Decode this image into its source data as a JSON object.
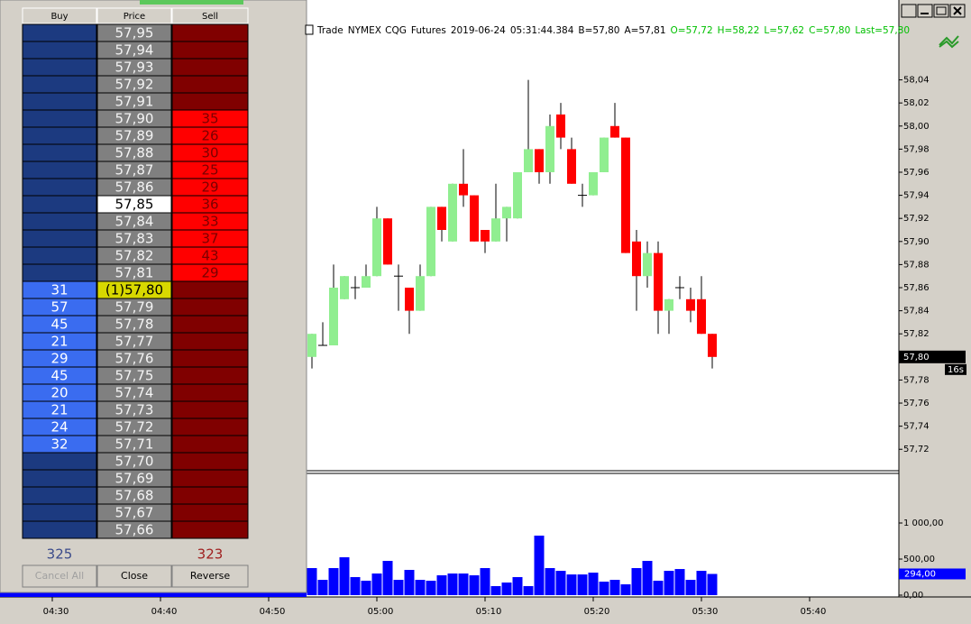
{
  "chart_data": [
    {
      "type": "candlestick",
      "title_parts": [
        {
          "text": "Trade",
          "color": "#000000"
        },
        {
          "text": "NYMEX",
          "color": "#000000"
        },
        {
          "text": "CQG",
          "color": "#000000"
        },
        {
          "text": "Futures",
          "color": "#000000"
        },
        {
          "text": "2019-06-24",
          "color": "#000000"
        },
        {
          "text": "05:31:44.384",
          "color": "#000000"
        },
        {
          "text": "B=57,80",
          "color": "#000000"
        },
        {
          "text": "A=57,81",
          "color": "#000000"
        },
        {
          "text": "O=57,72",
          "color": "#00c000"
        },
        {
          "text": "H=58,22",
          "color": "#00c000"
        },
        {
          "text": "L=57,62",
          "color": "#00c000"
        },
        {
          "text": "C=57,80",
          "color": "#00c000"
        },
        {
          "text": "Last=57,80",
          "color": "#00c000"
        }
      ],
      "x": [
        "04:54",
        "04:55",
        "04:56",
        "04:57",
        "04:58",
        "04:59",
        "05:00",
        "05:01",
        "05:02",
        "05:03",
        "05:04",
        "05:05",
        "05:06",
        "05:07",
        "05:08",
        "05:09",
        "05:10",
        "05:11",
        "05:12",
        "05:13",
        "05:14",
        "05:15",
        "05:16",
        "05:17",
        "05:18",
        "05:19",
        "05:20",
        "05:21",
        "05:22",
        "05:23",
        "05:24",
        "05:25",
        "05:26",
        "05:27",
        "05:28",
        "05:29",
        "05:30",
        "05:31"
      ],
      "open": [
        57.8,
        57.81,
        57.81,
        57.85,
        57.86,
        57.86,
        57.87,
        57.92,
        57.87,
        57.86,
        57.84,
        57.87,
        57.93,
        57.9,
        57.95,
        57.94,
        57.91,
        57.9,
        57.92,
        57.92,
        57.96,
        57.98,
        57.96,
        58.01,
        57.98,
        57.94,
        57.94,
        57.96,
        58.0,
        57.99,
        57.9,
        57.87,
        57.89,
        57.84,
        57.86,
        57.85,
        57.85,
        57.82
      ],
      "high": [
        57.82,
        57.83,
        57.88,
        57.87,
        57.87,
        57.88,
        57.93,
        57.92,
        57.88,
        57.86,
        57.88,
        57.93,
        57.93,
        57.95,
        57.98,
        57.94,
        57.91,
        57.95,
        57.93,
        57.96,
        58.04,
        57.98,
        58.01,
        58.02,
        57.99,
        57.95,
        57.96,
        57.99,
        58.02,
        57.99,
        57.91,
        57.9,
        57.9,
        57.85,
        57.87,
        57.86,
        57.87,
        57.82
      ],
      "low": [
        57.79,
        57.81,
        57.81,
        57.85,
        57.85,
        57.86,
        57.87,
        57.88,
        57.84,
        57.82,
        57.84,
        57.87,
        57.9,
        57.9,
        57.93,
        57.9,
        57.89,
        57.9,
        57.9,
        57.92,
        57.96,
        57.95,
        57.95,
        57.98,
        57.95,
        57.93,
        57.94,
        57.96,
        57.99,
        57.89,
        57.84,
        57.86,
        57.82,
        57.82,
        57.85,
        57.83,
        57.82,
        57.79
      ],
      "close": [
        57.82,
        57.81,
        57.86,
        57.87,
        57.86,
        57.87,
        57.92,
        57.88,
        57.87,
        57.84,
        57.87,
        57.93,
        57.91,
        57.95,
        57.94,
        57.9,
        57.9,
        57.92,
        57.93,
        57.96,
        57.98,
        57.96,
        58.0,
        57.99,
        57.95,
        57.94,
        57.96,
        57.99,
        57.99,
        57.89,
        57.87,
        57.89,
        57.84,
        57.85,
        57.86,
        57.84,
        57.82,
        57.8
      ],
      "up_color": "#90ee90",
      "down_color": "#ff0000",
      "ylim": [
        57.703,
        58.092
      ],
      "yticks": [
        {
          "value": 57.72,
          "label": "57,72"
        },
        {
          "value": 57.74,
          "label": "57,74"
        },
        {
          "value": 57.76,
          "label": "57,76"
        },
        {
          "value": 57.78,
          "label": "57,78"
        },
        {
          "value": 57.8,
          "label": "57,80"
        },
        {
          "value": 57.82,
          "label": "57,82"
        },
        {
          "value": 57.84,
          "label": "57,84"
        },
        {
          "value": 57.86,
          "label": "57,86"
        },
        {
          "value": 57.88,
          "label": "57,88"
        },
        {
          "value": 57.9,
          "label": "57,90"
        },
        {
          "value": 57.92,
          "label": "57,92"
        },
        {
          "value": 57.94,
          "label": "57,94"
        },
        {
          "value": 57.96,
          "label": "57,96"
        },
        {
          "value": 57.98,
          "label": "57,98"
        },
        {
          "value": 58.0,
          "label": "58,00"
        },
        {
          "value": 58.02,
          "label": "58,02"
        },
        {
          "value": 58.04,
          "label": "58,04"
        }
      ],
      "last_marker": {
        "value": 57.8,
        "label": "57,80"
      },
      "timer": "16s"
    },
    {
      "type": "bar",
      "x": [
        "04:54",
        "04:55",
        "04:56",
        "04:57",
        "04:58",
        "04:59",
        "05:00",
        "05:01",
        "05:02",
        "05:03",
        "05:04",
        "05:05",
        "05:06",
        "05:07",
        "05:08",
        "05:09",
        "05:10",
        "05:11",
        "05:12",
        "05:13",
        "05:14",
        "05:15",
        "05:16",
        "05:17",
        "05:18",
        "05:19",
        "05:20",
        "05:21",
        "05:22",
        "05:23",
        "05:24",
        "05:25",
        "05:26",
        "05:27",
        "05:28",
        "05:29",
        "05:30",
        "05:31"
      ],
      "values": [
        375,
        212,
        375,
        525,
        250,
        200,
        300,
        475,
        212,
        350,
        212,
        200,
        275,
        300,
        300,
        275,
        375,
        125,
        175,
        250,
        125,
        825,
        375,
        337,
        287,
        287,
        312,
        187,
        212,
        150,
        375,
        475,
        200,
        337,
        362,
        212,
        337,
        294
      ],
      "color": "#0000ff",
      "ylim": [
        0,
        1700
      ],
      "yticks": [
        {
          "value": 0,
          "label": "0,00"
        },
        {
          "value": 500,
          "label": "500,00"
        },
        {
          "value": 1000,
          "label": "1 000,00"
        }
      ],
      "last_marker": {
        "value": 294,
        "label": "294,00"
      },
      "xlim": [
        "04:25",
        "05:48"
      ],
      "xticks": [
        "04:30",
        "04:40",
        "04:50",
        "05:00",
        "05:10",
        "05:20",
        "05:30",
        "05:40"
      ]
    }
  ],
  "dom": {
    "columns": [
      "Buy",
      "Price",
      "Sell"
    ],
    "colors": {
      "buy": "#1c3a80",
      "buy_active": "#3a6cf0",
      "price": "#808080",
      "sell": "#800000",
      "sell_active": "#ff0000"
    },
    "rows": [
      {
        "price": "57,95",
        "buy": null,
        "sell": null
      },
      {
        "price": "57,94",
        "buy": null,
        "sell": null
      },
      {
        "price": "57,93",
        "buy": null,
        "sell": null
      },
      {
        "price": "57,92",
        "buy": null,
        "sell": null
      },
      {
        "price": "57,91",
        "buy": null,
        "sell": null
      },
      {
        "price": "57,90",
        "buy": null,
        "sell": 35
      },
      {
        "price": "57,89",
        "buy": null,
        "sell": 26
      },
      {
        "price": "57,88",
        "buy": null,
        "sell": 30
      },
      {
        "price": "57,87",
        "buy": null,
        "sell": 25
      },
      {
        "price": "57,86",
        "buy": null,
        "sell": 29
      },
      {
        "price": "57,85",
        "buy": null,
        "sell": 36,
        "price_fill": "#ffffff"
      },
      {
        "price": "57,84",
        "buy": null,
        "sell": 33
      },
      {
        "price": "57,83",
        "buy": null,
        "sell": 37
      },
      {
        "price": "57,82",
        "buy": null,
        "sell": 43
      },
      {
        "price": "57,81",
        "buy": null,
        "sell": 29
      },
      {
        "price": "(1)57,80",
        "buy": 31,
        "sell": null,
        "price_fill": "#d8d800"
      },
      {
        "price": "57,79",
        "buy": 57,
        "sell": null
      },
      {
        "price": "57,78",
        "buy": 45,
        "sell": null
      },
      {
        "price": "57,77",
        "buy": 21,
        "sell": null
      },
      {
        "price": "57,76",
        "buy": 29,
        "sell": null
      },
      {
        "price": "57,75",
        "buy": 45,
        "sell": null
      },
      {
        "price": "57,74",
        "buy": 20,
        "sell": null
      },
      {
        "price": "57,73",
        "buy": 21,
        "sell": null
      },
      {
        "price": "57,72",
        "buy": 24,
        "sell": null
      },
      {
        "price": "57,71",
        "buy": 32,
        "sell": null
      },
      {
        "price": "57,70",
        "buy": null,
        "sell": null
      },
      {
        "price": "57,69",
        "buy": null,
        "sell": null
      },
      {
        "price": "57,68",
        "buy": null,
        "sell": null
      },
      {
        "price": "57,67",
        "buy": null,
        "sell": null
      },
      {
        "price": "57,66",
        "buy": null,
        "sell": null
      }
    ],
    "totals": {
      "buy": 325,
      "sell": 323
    },
    "buttons": [
      "Cancel All",
      "Close",
      "Reverse"
    ]
  }
}
